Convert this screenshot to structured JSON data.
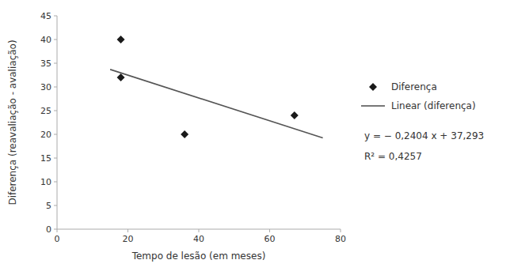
{
  "chart_data": {
    "type": "scatter",
    "xlabel": "Tempo de lesão (em meses)",
    "ylabel": "Diferença (reavaliação - avaliação)",
    "series": [
      {
        "name": "Diferença",
        "type": "scatter",
        "color": "#1a1a1a",
        "marker": "diamond",
        "x": [
          18,
          18,
          36,
          67
        ],
        "values": [
          40,
          32,
          20,
          24
        ]
      },
      {
        "name": "Linear (diferença)",
        "type": "line",
        "color": "#555555",
        "line_style": "solid",
        "x": [
          15,
          75
        ],
        "values": [
          33.687,
          19.263
        ]
      }
    ],
    "annotations": [
      "y = − 0,2404 x + 37,293",
      "R² = 0,4257"
    ],
    "xlim": [
      0,
      80
    ],
    "ylim": [
      0,
      45
    ],
    "xticks": [
      0,
      20,
      40,
      60,
      80
    ],
    "yticks": [
      0,
      5,
      10,
      15,
      20,
      25,
      30,
      35,
      40,
      45
    ],
    "grid": false,
    "legend": "right"
  }
}
